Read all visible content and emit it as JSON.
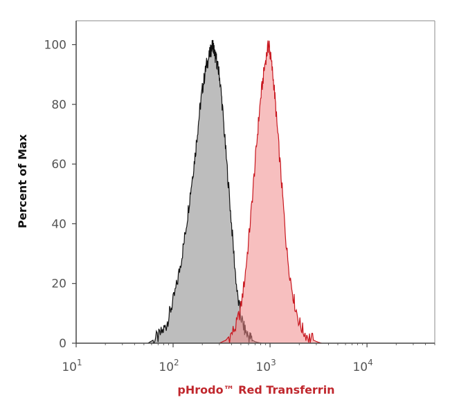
{
  "chart_data": {
    "type": "area",
    "title": "",
    "xlabel": "pHrodo™ Red Transferrin",
    "ylabel": "Percent of Max",
    "x_scale": "log",
    "xlim": [
      10,
      50000
    ],
    "ylim": [
      0,
      108
    ],
    "x_ticks": [
      {
        "value": 10,
        "base": "10",
        "exp": "1"
      },
      {
        "value": 100,
        "base": "10",
        "exp": "2"
      },
      {
        "value": 1000,
        "base": "10",
        "exp": "3"
      },
      {
        "value": 10000,
        "base": "10",
        "exp": "4"
      }
    ],
    "y_ticks": [
      0,
      20,
      40,
      60,
      80,
      100
    ],
    "grid": false,
    "colors": {
      "xlabel": "#c0272d",
      "control_fill": "#b2b2b2",
      "control_line": "#111111",
      "treated_fill": "#f08a8a",
      "treated_line": "#c8161e",
      "axis": "#444444"
    },
    "series": [
      {
        "x": [
          55,
          62,
          70,
          78,
          85,
          92,
          100,
          110,
          120,
          130,
          140,
          150,
          160,
          170,
          180,
          190,
          200,
          210,
          220,
          230,
          240,
          250,
          258,
          265,
          272,
          280,
          290,
          300,
          315,
          330,
          350,
          375,
          400,
          430,
          460,
          500,
          540,
          580,
          620,
          660,
          700,
          760,
          820
        ],
        "y": [
          0,
          1,
          2,
          4,
          6,
          10,
          14,
          20,
          27,
          34,
          42,
          50,
          57,
          64,
          72,
          79,
          85,
          89,
          93,
          95,
          97,
          99,
          100,
          98,
          96,
          95,
          92,
          90,
          83,
          75,
          64,
          52,
          40,
          27,
          16,
          9,
          5,
          3,
          2,
          1,
          0.5,
          0.2,
          0
        ]
      },
      {
        "x": [
          300,
          350,
          400,
          450,
          500,
          550,
          600,
          650,
          700,
          750,
          800,
          850,
          900,
          950,
          980,
          1000,
          1050,
          1100,
          1150,
          1200,
          1300,
          1400,
          1500,
          1650,
          1800,
          2000,
          2200,
          2500,
          2800,
          3100,
          3400
        ],
        "y": [
          0,
          1,
          3,
          6,
          12,
          22,
          34,
          47,
          60,
          72,
          82,
          89,
          95,
          99,
          100,
          97,
          92,
          86,
          78,
          70,
          56,
          42,
          30,
          20,
          13,
          7,
          4,
          2,
          1,
          0.4,
          0
        ]
      }
    ]
  }
}
